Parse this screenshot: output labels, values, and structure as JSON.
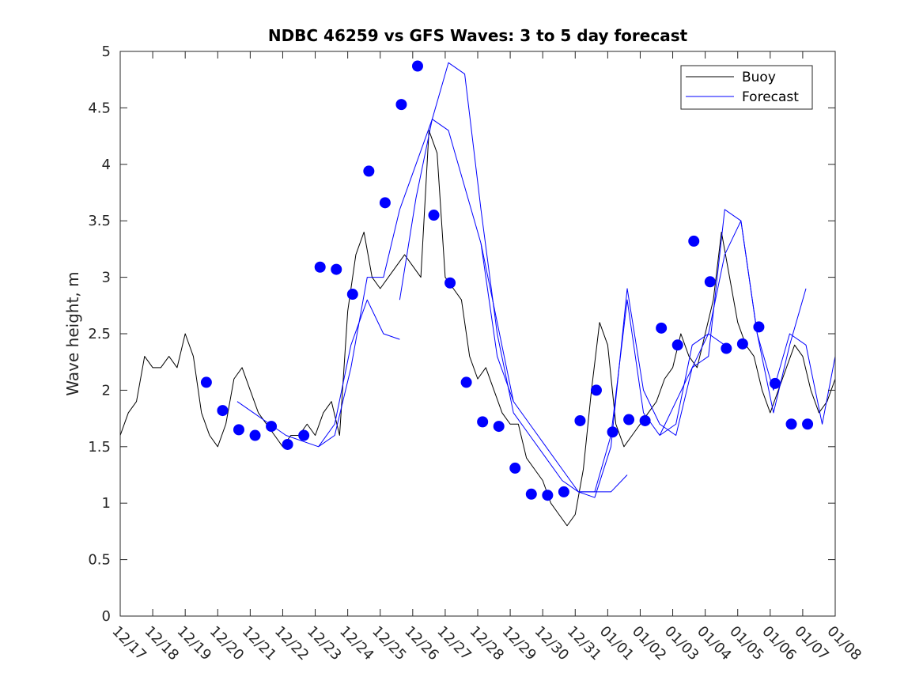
{
  "chart_data": {
    "type": "line",
    "title": "NDBC 46259 vs GFS Waves: 3 to 5 day forecast",
    "xlabel": "",
    "ylabel": "Wave height, m",
    "ylim": [
      0,
      5
    ],
    "xlim": [
      0,
      22
    ],
    "yticks": [
      0,
      0.5,
      1,
      1.5,
      2,
      2.5,
      3,
      3.5,
      4,
      4.5,
      5
    ],
    "ytick_labels": [
      "0",
      "0.5",
      "1",
      "1.5",
      "2",
      "2.5",
      "3",
      "3.5",
      "4",
      "4.5",
      "5"
    ],
    "xticks": [
      0,
      1,
      2,
      3,
      4,
      5,
      6,
      7,
      8,
      9,
      10,
      11,
      12,
      13,
      14,
      15,
      16,
      17,
      18,
      19,
      20,
      21,
      22
    ],
    "xtick_labels": [
      "12/17",
      "12/18",
      "12/19",
      "12/20",
      "12/21",
      "12/22",
      "12/23",
      "12/24",
      "12/25",
      "12/26",
      "12/27",
      "12/28",
      "12/29",
      "12/30",
      "12/31",
      "01/01",
      "01/02",
      "01/03",
      "01/04",
      "01/05",
      "01/06",
      "01/07",
      "01/08"
    ],
    "legend": {
      "position": "top-right",
      "entries": [
        {
          "label": "Buoy",
          "color": "#000000"
        },
        {
          "label": "Forecast",
          "color": "#0000ff"
        }
      ]
    },
    "series": [
      {
        "name": "Buoy",
        "color": "#000000",
        "x": [
          0,
          0.25,
          0.5,
          0.75,
          1,
          1.25,
          1.5,
          1.75,
          2,
          2.25,
          2.5,
          2.75,
          3,
          3.25,
          3.5,
          3.75,
          4,
          4.25,
          4.5,
          4.75,
          5,
          5.25,
          5.5,
          5.75,
          6,
          6.25,
          6.5,
          6.75,
          7,
          7.25,
          7.5,
          7.75,
          8,
          8.25,
          8.5,
          8.75,
          9,
          9.25,
          9.5,
          9.75,
          10,
          10.25,
          10.5,
          10.75,
          11,
          11.25,
          11.5,
          11.75,
          12,
          12.25,
          12.5,
          12.75,
          13,
          13.25,
          13.5,
          13.75,
          14,
          14.25,
          14.5,
          14.75,
          15,
          15.25,
          15.5,
          15.75,
          16,
          16.25,
          16.5,
          16.75,
          17,
          17.25,
          17.5,
          17.75,
          18,
          18.25,
          18.5,
          18.75,
          19,
          19.25,
          19.5,
          19.75,
          20,
          20.25,
          20.5,
          20.75,
          21,
          21.25,
          21.5,
          21.75,
          22
        ],
        "values": [
          1.6,
          1.8,
          1.9,
          2.3,
          2.2,
          2.2,
          2.3,
          2.2,
          2.5,
          2.3,
          1.8,
          1.6,
          1.5,
          1.7,
          2.1,
          2.2,
          2.0,
          1.8,
          1.7,
          1.6,
          1.5,
          1.6,
          1.6,
          1.7,
          1.6,
          1.8,
          1.9,
          1.6,
          2.7,
          3.2,
          3.4,
          3.0,
          2.9,
          3.0,
          3.1,
          3.2,
          3.1,
          3.0,
          4.3,
          4.1,
          3.0,
          2.9,
          2.8,
          2.3,
          2.1,
          2.2,
          2.0,
          1.8,
          1.7,
          1.7,
          1.4,
          1.3,
          1.2,
          1.0,
          0.9,
          0.8,
          0.9,
          1.3,
          2.0,
          2.6,
          2.4,
          1.7,
          1.5,
          1.6,
          1.7,
          1.8,
          1.9,
          2.1,
          2.2,
          2.5,
          2.3,
          2.2,
          2.5,
          2.8,
          3.4,
          3.0,
          2.6,
          2.4,
          2.3,
          2.0,
          1.8,
          2.0,
          2.2,
          2.4,
          2.3,
          2.0,
          1.8,
          1.9,
          2.1
        ]
      },
      {
        "name": "Forecast",
        "color": "#0000ff",
        "x": [
          3.6,
          4.1,
          4.6,
          5.1,
          5.6,
          6.1,
          6.6,
          7.1,
          7.6,
          8.1,
          8.6
        ],
        "values": [
          1.9,
          1.8,
          1.7,
          1.6,
          1.55,
          1.5,
          1.7,
          2.4,
          2.8,
          2.5,
          2.45
        ]
      },
      {
        "name": "Forecast",
        "color": "#0000ff",
        "x": [
          6.1,
          6.6,
          7.1,
          7.6,
          8.1,
          8.6,
          9.1,
          9.6,
          10.1,
          10.6,
          11.1,
          11.6,
          12.1
        ],
        "values": [
          1.5,
          1.6,
          2.2,
          3.0,
          3.0,
          3.6,
          4.0,
          4.4,
          4.3,
          3.8,
          3.3,
          2.6,
          1.9
        ]
      },
      {
        "name": "Forecast",
        "color": "#0000ff",
        "x": [
          8.6,
          9.1,
          9.6,
          10.1,
          10.6,
          11.1,
          11.6,
          12.1,
          12.6,
          13.1,
          13.6,
          14.1,
          14.6,
          15.1,
          15.6
        ],
        "values": [
          2.8,
          3.7,
          4.4,
          4.9,
          4.8,
          3.6,
          2.5,
          1.8,
          1.6,
          1.4,
          1.2,
          1.1,
          1.1,
          1.1,
          1.25
        ]
      },
      {
        "name": "Forecast",
        "color": "#0000ff",
        "x": [
          11.1,
          11.6,
          12.1,
          12.6,
          13.1,
          13.6,
          14.1,
          14.6,
          15.1,
          15.6,
          16.1,
          16.6,
          17.1,
          17.6,
          18.1,
          18.6
        ],
        "values": [
          3.3,
          2.3,
          1.9,
          1.7,
          1.5,
          1.3,
          1.1,
          1.05,
          1.5,
          2.9,
          2.0,
          1.7,
          1.6,
          2.2,
          2.5,
          2.4
        ]
      },
      {
        "name": "Forecast",
        "color": "#0000ff",
        "x": [
          14.1,
          14.6,
          15.1,
          15.6,
          16.1,
          16.6,
          17.1,
          17.6,
          18.1,
          18.6,
          19.1,
          19.6,
          20.1,
          20.6,
          21.1
        ],
        "values": [
          1.1,
          1.1,
          1.6,
          2.8,
          1.8,
          1.6,
          1.9,
          2.2,
          2.3,
          3.6,
          3.5,
          2.5,
          1.8,
          2.4,
          2.9
        ]
      },
      {
        "name": "Forecast",
        "color": "#0000ff",
        "x": [
          16.6,
          17.1,
          17.6,
          18.1,
          18.6,
          19.1,
          19.6,
          20.1,
          20.6,
          21.1,
          21.6,
          22.0
        ],
        "values": [
          1.6,
          1.7,
          2.4,
          2.5,
          3.2,
          3.5,
          2.5,
          2.0,
          2.5,
          2.4,
          1.7,
          2.3
        ]
      }
    ],
    "forecast_points": {
      "x": [
        2.65,
        3.15,
        3.65,
        4.15,
        4.65,
        5.15,
        5.65,
        6.15,
        6.65,
        7.15,
        7.65,
        8.15,
        8.65,
        9.15,
        9.65,
        10.15,
        10.65,
        11.15,
        11.65,
        12.15,
        12.65,
        13.15,
        13.65,
        14.15,
        14.65,
        15.15,
        15.65,
        16.15,
        16.65,
        17.15,
        17.65,
        18.15,
        18.65,
        19.15,
        19.65,
        20.15,
        20.65,
        21.15
      ],
      "values": [
        2.07,
        1.82,
        1.65,
        1.6,
        1.68,
        1.52,
        1.6,
        3.09,
        3.07,
        2.85,
        3.94,
        3.66,
        4.53,
        4.87,
        3.55,
        2.95,
        2.07,
        1.72,
        1.68,
        1.31,
        1.08,
        1.07,
        1.1,
        1.73,
        2.0,
        1.63,
        1.74,
        1.73,
        2.55,
        2.4,
        3.32,
        2.96,
        2.37,
        2.41,
        2.56,
        2.06,
        1.7,
        1.7
      ]
    }
  }
}
